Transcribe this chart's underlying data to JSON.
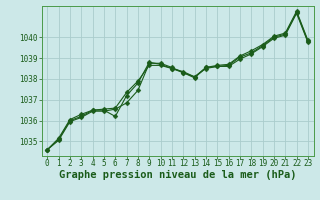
{
  "title": "Graphe pression niveau de la mer (hPa)",
  "background_color": "#cce8e8",
  "grid_color": "#aacccc",
  "line_color": "#1a5c1a",
  "xlim": [
    -0.5,
    23.5
  ],
  "ylim": [
    1034.3,
    1041.5
  ],
  "yticks": [
    1035,
    1036,
    1037,
    1038,
    1039,
    1040
  ],
  "xticks": [
    0,
    1,
    2,
    3,
    4,
    5,
    6,
    7,
    8,
    9,
    10,
    11,
    12,
    13,
    14,
    15,
    16,
    17,
    18,
    19,
    20,
    21,
    22,
    23
  ],
  "series": {
    "line1_x": [
      0,
      1,
      2,
      3,
      4,
      5,
      6,
      7,
      8,
      9,
      10,
      11,
      12,
      13,
      14,
      15,
      16,
      17,
      18,
      19,
      20,
      21,
      22,
      23
    ],
    "line1_y": [
      1034.6,
      1035.05,
      1035.95,
      1036.15,
      1036.45,
      1036.45,
      1036.55,
      1036.85,
      1037.45,
      1038.75,
      1038.75,
      1038.55,
      1038.3,
      1038.05,
      1038.55,
      1038.6,
      1038.6,
      1038.95,
      1039.2,
      1039.55,
      1039.95,
      1040.1,
      1041.15,
      1039.75
    ],
    "line2_x": [
      0,
      1,
      2,
      3,
      4,
      5,
      6,
      7,
      8,
      9,
      10,
      11,
      12,
      13,
      14,
      15,
      16,
      17,
      18,
      19,
      20,
      21,
      22,
      23
    ],
    "line2_y": [
      1034.6,
      1035.1,
      1036.0,
      1036.2,
      1036.5,
      1036.5,
      1036.2,
      1037.2,
      1037.8,
      1038.8,
      1038.7,
      1038.5,
      1038.3,
      1038.1,
      1038.5,
      1038.6,
      1038.65,
      1039.05,
      1039.25,
      1039.6,
      1040.0,
      1040.15,
      1041.2,
      1039.8
    ],
    "line3_x": [
      0,
      1,
      2,
      3,
      4,
      5,
      6,
      7,
      8,
      9,
      10,
      11,
      12,
      13,
      14,
      15,
      16,
      17,
      18,
      19,
      20,
      21,
      22,
      23
    ],
    "line3_y": [
      1034.6,
      1035.15,
      1036.05,
      1036.3,
      1036.5,
      1036.55,
      1036.6,
      1037.35,
      1037.9,
      1038.65,
      1038.65,
      1038.5,
      1038.35,
      1038.1,
      1038.55,
      1038.65,
      1038.7,
      1039.1,
      1039.35,
      1039.65,
      1040.05,
      1040.2,
      1041.25,
      1039.85
    ]
  },
  "markersize": 2.5,
  "linewidth": 0.8,
  "title_fontsize": 7.5,
  "tick_fontsize": 5.5,
  "title_color": "#1a5c1a",
  "tick_color": "#1a5c1a",
  "axis_color": "#1a5c1a",
  "spine_color": "#4a9a4a"
}
